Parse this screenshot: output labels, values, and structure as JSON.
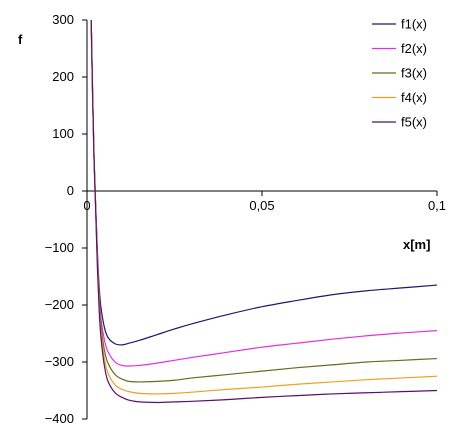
{
  "chart_data": {
    "type": "line",
    "title": "",
    "xlabel": "x[m]",
    "ylabel": "f",
    "xlim": [
      0,
      0.1
    ],
    "ylim": [
      -400,
      300
    ],
    "x_ticks": [
      0,
      0.05,
      0.1
    ],
    "x_tick_labels": [
      "0",
      "0,05",
      "0,1"
    ],
    "y_ticks": [
      300,
      200,
      100,
      0,
      -100,
      -200,
      -300,
      -400
    ],
    "y_tick_labels": [
      "300",
      "200",
      "100",
      "0",
      "−100",
      "−200",
      "−300",
      "−400"
    ],
    "grid": false,
    "legend_position": "top-right",
    "x": [
      0.0012,
      0.0016,
      0.002,
      0.0025,
      0.003,
      0.0035,
      0.004,
      0.005,
      0.006,
      0.008,
      0.01,
      0.012,
      0.015,
      0.02,
      0.025,
      0.03,
      0.04,
      0.05,
      0.06,
      0.07,
      0.08,
      0.09,
      0.1
    ],
    "series": [
      {
        "name": "f1(x)",
        "color": "#1a1a6e",
        "values": [
          300,
          170,
          60,
          -28,
          -110,
          -170,
          -205,
          -240,
          -257,
          -268,
          -270,
          -267,
          -262,
          -252,
          -242,
          -233,
          -217,
          -203,
          -192,
          -182,
          -175,
          -170,
          -165
        ]
      },
      {
        "name": "f2(x)",
        "color": "#e42fe4",
        "values": [
          300,
          170,
          60,
          -32,
          -120,
          -185,
          -225,
          -262,
          -282,
          -300,
          -306,
          -307,
          -306,
          -302,
          -297,
          -292,
          -283,
          -274,
          -267,
          -260,
          -254,
          -249,
          -245
        ]
      },
      {
        "name": "f3(x)",
        "color": "#6b6b1a",
        "values": [
          300,
          170,
          60,
          -34,
          -126,
          -193,
          -236,
          -280,
          -302,
          -322,
          -330,
          -334,
          -335,
          -334,
          -332,
          -328,
          -322,
          -316,
          -310,
          -305,
          -300,
          -297,
          -294
        ]
      },
      {
        "name": "f4(x)",
        "color": "#f0a020",
        "values": [
          300,
          170,
          60,
          -36,
          -132,
          -202,
          -247,
          -295,
          -320,
          -340,
          -348,
          -352,
          -355,
          -356,
          -355,
          -353,
          -348,
          -344,
          -339,
          -335,
          -331,
          -328,
          -325
        ]
      },
      {
        "name": "f5(x)",
        "color": "#5a0f6e",
        "values": [
          300,
          170,
          60,
          -38,
          -140,
          -212,
          -258,
          -308,
          -334,
          -354,
          -362,
          -367,
          -370,
          -371,
          -370,
          -369,
          -366,
          -362,
          -359,
          -356,
          -354,
          -352,
          -350
        ]
      }
    ]
  }
}
